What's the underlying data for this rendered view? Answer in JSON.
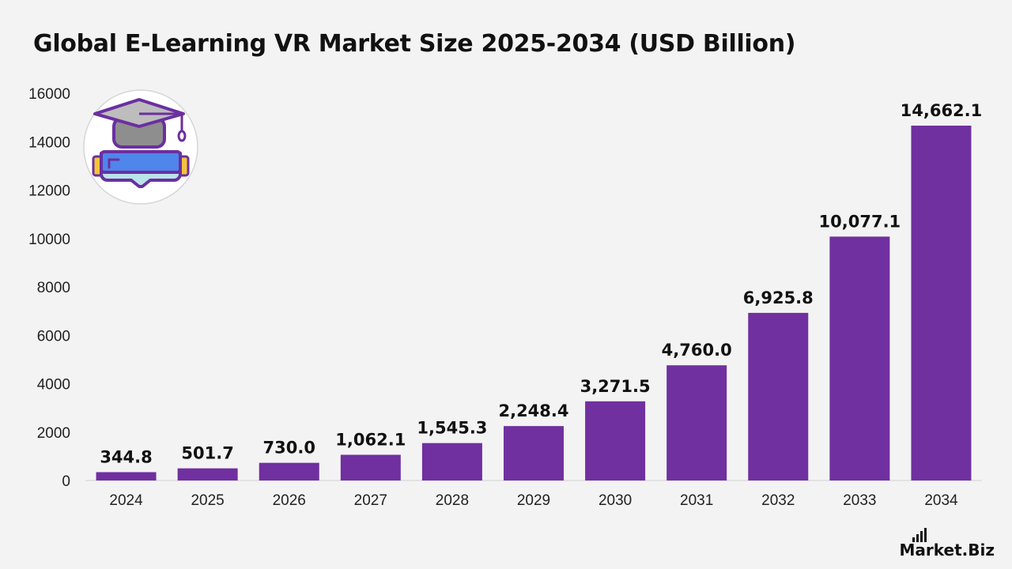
{
  "title": "Global E-Learning VR Market Size 2025-2034 (USD Billion)",
  "brand": {
    "name": "Market.Biz",
    "logo_icon": "bar-chart-icon"
  },
  "illustration": {
    "icon": "vr-headset-graduation-cap-icon"
  },
  "colors": {
    "bar": "#7030a0",
    "background": "#f3f3f3",
    "text": "#111111"
  },
  "chart_data": {
    "type": "bar",
    "title": "Global E-Learning VR Market Size 2025-2034 (USD Billion)",
    "xlabel": "",
    "ylabel": "",
    "categories": [
      "2024",
      "2025",
      "2026",
      "2027",
      "2028",
      "2029",
      "2030",
      "2031",
      "2032",
      "2033",
      "2034"
    ],
    "values": [
      344.8,
      501.7,
      730.0,
      1062.1,
      1545.3,
      2248.4,
      3271.5,
      4760.0,
      6925.8,
      10077.1,
      14662.1
    ],
    "data_labels": [
      "344.8",
      "501.7",
      "730.0",
      "1,062.1",
      "1,545.3",
      "2,248.4",
      "3,271.5",
      "4,760.0",
      "6,925.8",
      "10,077.1",
      "14,662.1"
    ],
    "ylim": [
      0,
      16000
    ],
    "yticks": [
      "0",
      "2000",
      "4000",
      "6000",
      "8000",
      "10000",
      "12000",
      "14000",
      "16000"
    ],
    "grid": false,
    "legend": "none"
  }
}
